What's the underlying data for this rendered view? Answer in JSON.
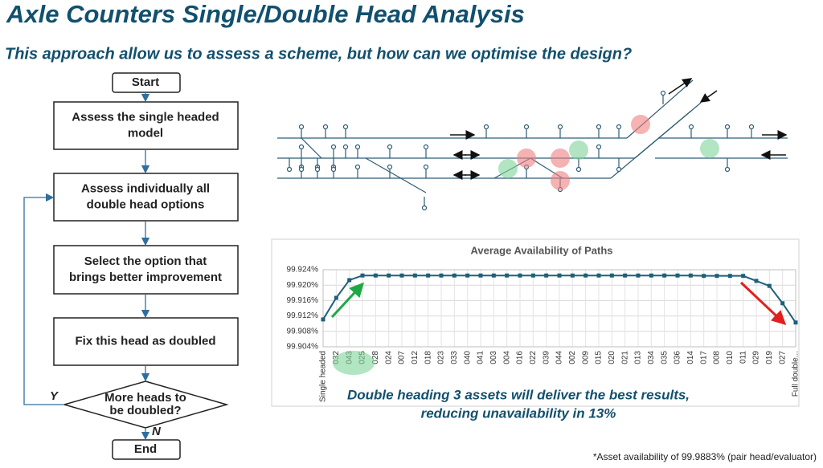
{
  "header": {
    "title": "Axle Counters Single/Double Head Analysis",
    "subtitle": "This approach allow us to assess a scheme, but how can we optimise the design?"
  },
  "flowchart": {
    "nodes": [
      {
        "lines": [
          "Start"
        ]
      },
      {
        "lines": [
          "Assess the single headed",
          "model"
        ]
      },
      {
        "lines": [
          "Assess individually all",
          "double head options"
        ]
      },
      {
        "lines": [
          "Select the option that",
          "brings better improvement"
        ]
      },
      {
        "lines": [
          "Fix this head as doubled"
        ]
      },
      {
        "lines": [
          "More heads to",
          "be doubled?"
        ]
      },
      {
        "lines": [
          "End"
        ]
      }
    ],
    "yes_label": "Y",
    "no_label": "N"
  },
  "chart_data": {
    "type": "line",
    "title": "Average Availability of Paths",
    "categories": [
      "Single headed",
      "032",
      "043",
      "025",
      "028",
      "024",
      "007",
      "012",
      "018",
      "023",
      "033",
      "040",
      "041",
      "003",
      "004",
      "016",
      "022",
      "039",
      "044",
      "002",
      "009",
      "015",
      "020",
      "021",
      "013",
      "034",
      "035",
      "036",
      "014",
      "017",
      "008",
      "010",
      "011",
      "029",
      "019",
      "027",
      "Full double..."
    ],
    "series": [
      {
        "name": "Average Availability",
        "color": "#1f5f7a",
        "values": [
          99.9111,
          99.9167,
          99.9213,
          99.9225,
          99.9225,
          99.9225,
          99.9225,
          99.9225,
          99.9225,
          99.9225,
          99.9225,
          99.9225,
          99.9225,
          99.9225,
          99.9225,
          99.9225,
          99.9225,
          99.9225,
          99.9225,
          99.9225,
          99.9225,
          99.9225,
          99.9225,
          99.9225,
          99.9225,
          99.9225,
          99.9225,
          99.9225,
          99.9225,
          99.9224,
          99.9224,
          99.9224,
          99.9224,
          99.9211,
          99.9198,
          99.9153,
          99.9103
        ]
      }
    ],
    "ylim": [
      99.904,
      99.924
    ],
    "yticks": [
      {
        "value": 99.904,
        "label": "99.904%"
      },
      {
        "value": 99.908,
        "label": "99.908%"
      },
      {
        "value": 99.912,
        "label": "99.912%"
      },
      {
        "value": 99.916,
        "label": "99.916%"
      },
      {
        "value": 99.92,
        "label": "99.920%"
      },
      {
        "value": 99.924,
        "label": "99.924%"
      }
    ],
    "grid": true
  },
  "conclusion": [
    "Double heading 3 assets will deliver the best results,",
    "reducing unavailability in 13%"
  ],
  "footnote": "*Asset availability of 99.9883% (pair head/evaluator)"
}
